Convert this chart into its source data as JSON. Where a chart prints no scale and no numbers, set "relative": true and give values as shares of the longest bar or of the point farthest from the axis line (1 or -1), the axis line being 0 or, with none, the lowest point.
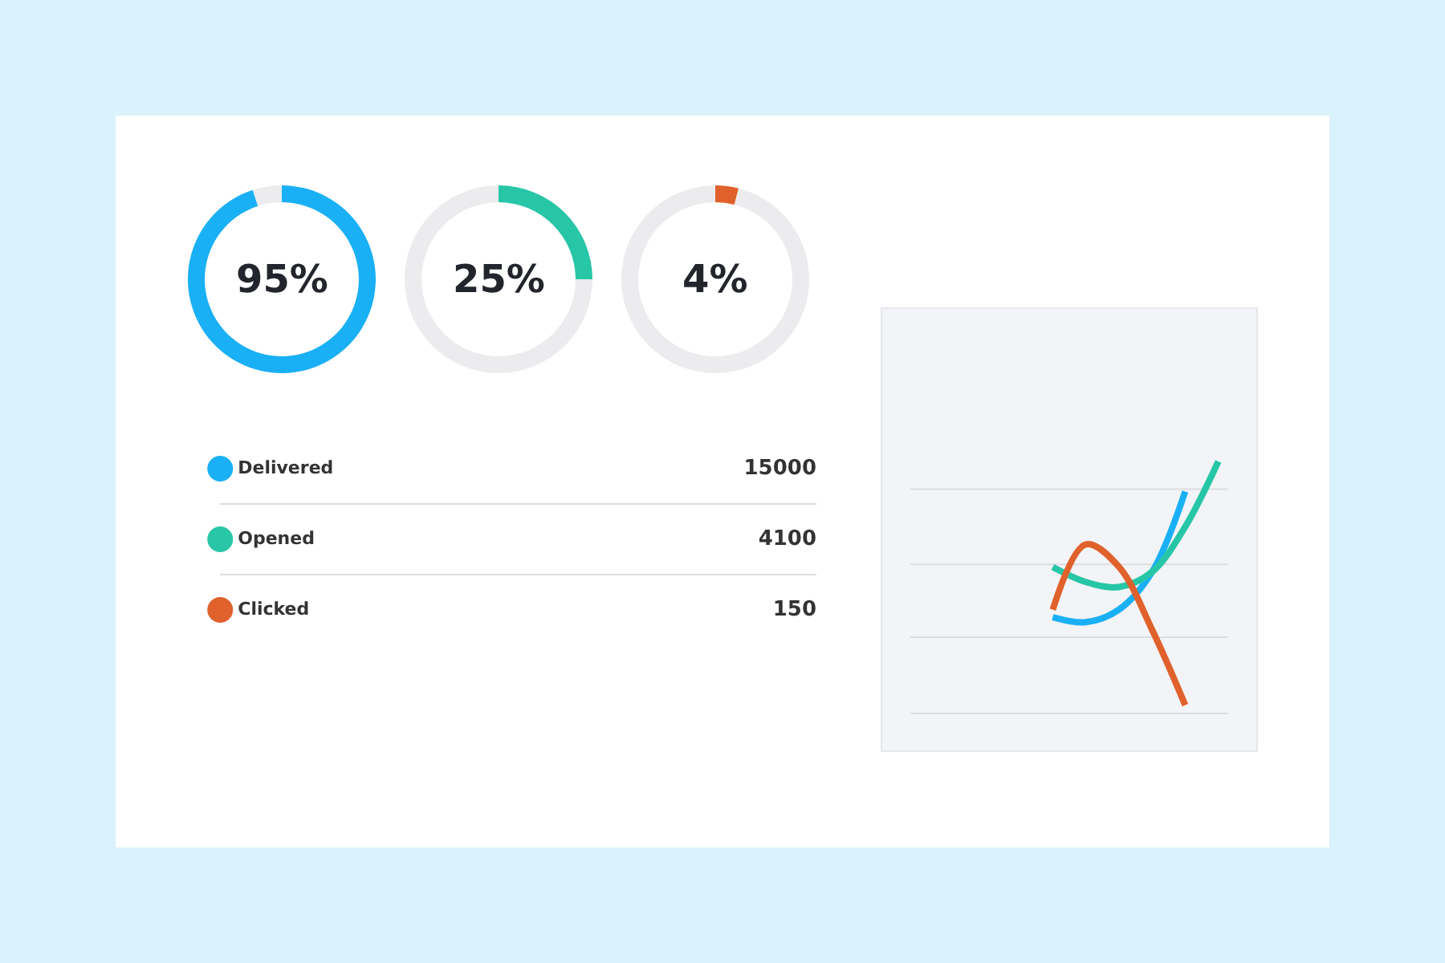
{
  "chart_data": [
    {
      "type": "donut",
      "categories": [
        null,
        null
      ],
      "values": [
        95,
        5
      ],
      "colors": [
        "#1ab0f5",
        "#ececef"
      ],
      "annotations": [
        "95%"
      ]
    },
    {
      "type": "donut",
      "categories": [
        null,
        null
      ],
      "values": [
        25,
        75
      ],
      "colors": [
        "#27c6a6",
        "#ececef"
      ],
      "annotations": [
        "25%"
      ]
    },
    {
      "type": "donut",
      "categories": [
        null,
        null
      ],
      "values": [
        4,
        96
      ],
      "colors": [
        "#e0612c",
        "#ececef"
      ],
      "annotations": [
        "4%"
      ]
    },
    {
      "type": "other",
      "categories": [
        "Delivered",
        "Opened",
        "Clicked"
      ],
      "values": [
        15000,
        4100,
        150
      ],
      "data_labels": true,
      "colors": [
        "#1ab0f5",
        "#27c6a6",
        "#e0612c"
      ]
    },
    {
      "type": "line",
      "relative": true,
      "ref_lines": [
        {
          "axis": "y",
          "value": 0.3,
          "color": "#dcdde1"
        },
        {
          "axis": "y",
          "value": 0.59,
          "color": "#dcdde1"
        },
        {
          "axis": "y",
          "value": 0.89,
          "color": "#dcdde1"
        }
      ],
      "categories": [
        null,
        null,
        null,
        null,
        null,
        null,
        null,
        null,
        null,
        null
      ],
      "series": [
        {
          "color": "#1ab0f5",
          "values": [
            null,
            null,
            null,
            null,
            0.38,
            0.36,
            0.41,
            0.56,
            0.88,
            null
          ]
        },
        {
          "color": "#27c6a6",
          "values": [
            null,
            null,
            null,
            null,
            0.58,
            0.52,
            0.5,
            0.56,
            0.74,
            1.0
          ]
        },
        {
          "color": "#e0612c",
          "values": [
            null,
            null,
            null,
            null,
            0.41,
            0.67,
            0.58,
            0.33,
            0.03,
            null
          ]
        }
      ]
    }
  ]
}
